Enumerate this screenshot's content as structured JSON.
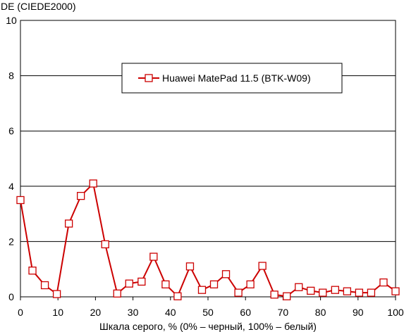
{
  "chart_data": {
    "type": "line",
    "ylabel": "DE (CIEDE2000)",
    "xlabel": "Шкала серого, % (0% – черный, 100% – белый)",
    "xlim": [
      0,
      100
    ],
    "ylim": [
      0,
      10
    ],
    "x_ticks": [
      0,
      10,
      20,
      30,
      40,
      50,
      60,
      70,
      80,
      90,
      100
    ],
    "y_ticks": [
      0,
      2,
      4,
      6,
      8,
      10
    ],
    "grid": "horizontal",
    "legend_position": "top-right",
    "series": [
      {
        "name": "Huawei MatePad 11.5 (BTK-W09)",
        "color": "#cc0000",
        "marker": "open-square",
        "x": [
          0,
          3.2,
          6.5,
          9.7,
          12.9,
          16.1,
          19.4,
          22.6,
          25.8,
          29.0,
          32.3,
          35.5,
          38.7,
          41.9,
          45.2,
          48.4,
          51.6,
          54.8,
          58.1,
          61.3,
          64.5,
          67.7,
          71.0,
          74.2,
          77.4,
          80.6,
          83.9,
          87.1,
          90.3,
          93.5,
          96.8,
          100
        ],
        "y": [
          3.5,
          0.95,
          0.42,
          0.1,
          2.65,
          3.65,
          4.1,
          1.9,
          0.12,
          0.48,
          0.55,
          1.45,
          0.45,
          0.02,
          1.1,
          0.25,
          0.45,
          0.82,
          0.15,
          0.45,
          1.12,
          0.08,
          0.02,
          0.35,
          0.22,
          0.15,
          0.25,
          0.2,
          0.15,
          0.15,
          0.52,
          0.2
        ]
      }
    ]
  }
}
